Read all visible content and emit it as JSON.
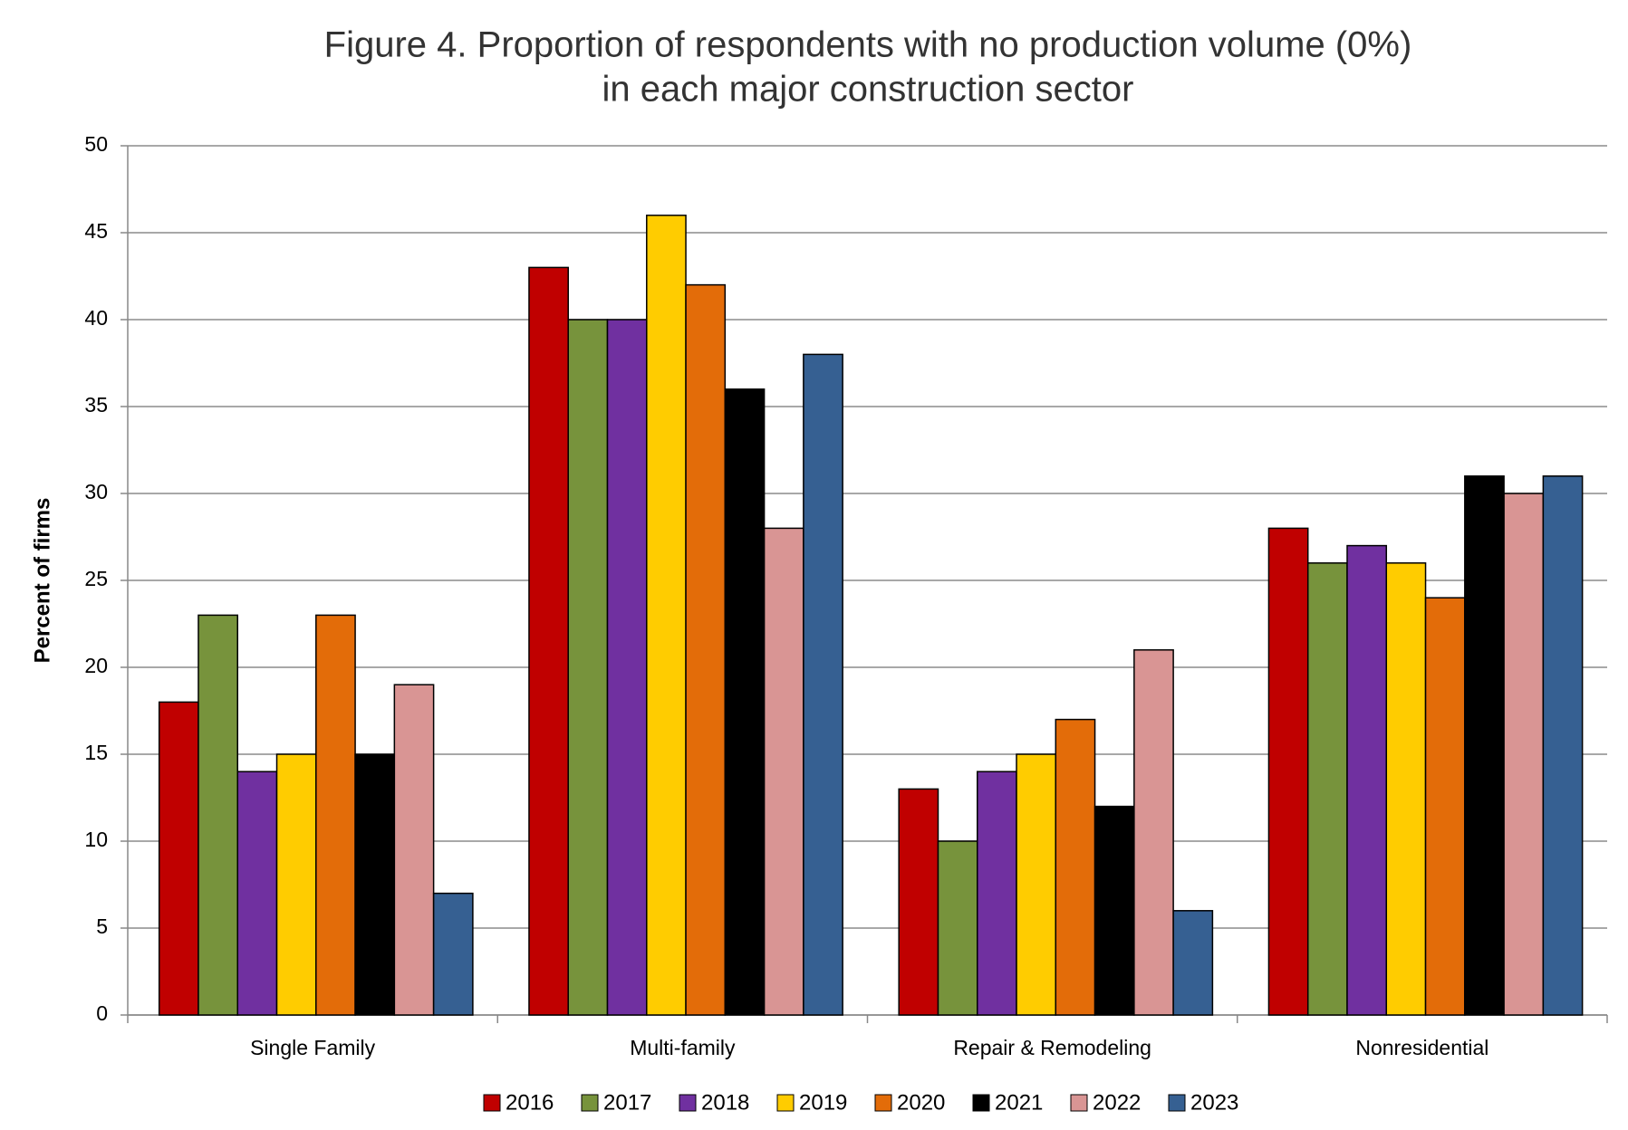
{
  "chart_data": {
    "type": "bar",
    "title": [
      "Figure 4. Proportion of respondents with no production volume (0%)",
      "in each major construction sector"
    ],
    "y_label": "Percent of firms",
    "categories": [
      "Single Family",
      "Multi-family",
      "Repair & Remodeling",
      "Nonresidential"
    ],
    "series": [
      {
        "name": "2016",
        "color": "#c00000",
        "values": [
          18,
          43,
          13,
          28
        ]
      },
      {
        "name": "2017",
        "color": "#77933c",
        "values": [
          23,
          40,
          10,
          26
        ]
      },
      {
        "name": "2018",
        "color": "#7030a0",
        "values": [
          14,
          40,
          14,
          27
        ]
      },
      {
        "name": "2019",
        "color": "#ffcc00",
        "values": [
          15,
          46,
          15,
          26
        ]
      },
      {
        "name": "2020",
        "color": "#e36c09",
        "values": [
          23,
          42,
          17,
          24
        ]
      },
      {
        "name": "2021",
        "color": "#000000",
        "values": [
          15,
          36,
          12,
          31
        ]
      },
      {
        "name": "2022",
        "color": "#d99594",
        "values": [
          19,
          28,
          21,
          30
        ]
      },
      {
        "name": "2023",
        "color": "#366092",
        "values": [
          7,
          38,
          6,
          31
        ]
      }
    ],
    "ylim": [
      0,
      50
    ],
    "yticks": [
      0,
      5,
      10,
      15,
      20,
      25,
      30,
      35,
      40,
      45,
      50
    ],
    "grid": true,
    "legend": "bottom"
  }
}
